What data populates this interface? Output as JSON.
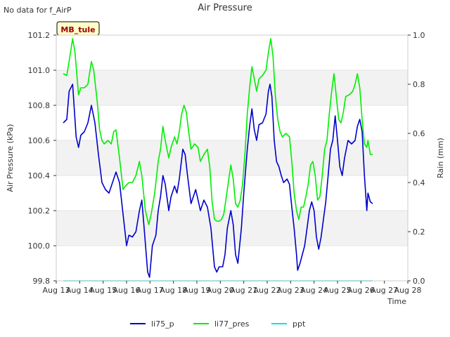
{
  "chart_data": {
    "type": "line",
    "title": "Air Pressure",
    "note": "No data for f_AirP",
    "site_label": "MB_tule",
    "xlabel": "Time",
    "ylabel": "Air Pressure (kPa)",
    "y2label": "Rain (mm)",
    "xlim": [
      13,
      28
    ],
    "ylim": [
      99.8,
      101.2
    ],
    "y2lim": [
      0.0,
      1.0
    ],
    "x_ticks": [
      {
        "value": 13,
        "label": "Aug 13"
      },
      {
        "value": 14,
        "label": "Aug 14"
      },
      {
        "value": 15,
        "label": "Aug 15"
      },
      {
        "value": 16,
        "label": "Aug 16"
      },
      {
        "value": 17,
        "label": "Aug 17"
      },
      {
        "value": 18,
        "label": "Aug 18"
      },
      {
        "value": 19,
        "label": "Aug 19"
      },
      {
        "value": 20,
        "label": "Aug 20"
      },
      {
        "value": 21,
        "label": "Aug 21"
      },
      {
        "value": 22,
        "label": "Aug 22"
      },
      {
        "value": 23,
        "label": "Aug 23"
      },
      {
        "value": 24,
        "label": "Aug 24"
      },
      {
        "value": 25,
        "label": "Aug 25"
      },
      {
        "value": 26,
        "label": "Aug 26"
      },
      {
        "value": 27,
        "label": "Aug 27"
      },
      {
        "value": 28,
        "label": "Aug 28"
      }
    ],
    "y_ticks": [
      {
        "value": 99.8,
        "label": "99.8"
      },
      {
        "value": 100.0,
        "label": "100.0"
      },
      {
        "value": 100.2,
        "label": "100.2"
      },
      {
        "value": 100.4,
        "label": "100.4"
      },
      {
        "value": 100.6,
        "label": "100.6"
      },
      {
        "value": 100.8,
        "label": "100.8"
      },
      {
        "value": 101.0,
        "label": "101.0"
      },
      {
        "value": 101.2,
        "label": "101.2"
      }
    ],
    "y2_ticks": [
      {
        "value": 0.0,
        "label": "0.0"
      },
      {
        "value": 0.2,
        "label": "0.2"
      },
      {
        "value": 0.4,
        "label": "0.4"
      },
      {
        "value": 0.6,
        "label": "0.6"
      },
      {
        "value": 0.8,
        "label": "0.8"
      },
      {
        "value": 1.0,
        "label": "1.0"
      }
    ],
    "series": [
      {
        "name": "li75_p",
        "color": "#0000cc",
        "axis": "left",
        "points": [
          [
            13.3,
            100.7
          ],
          [
            13.45,
            100.72
          ],
          [
            13.55,
            100.88
          ],
          [
            13.7,
            100.92
          ],
          [
            13.85,
            100.62
          ],
          [
            13.95,
            100.56
          ],
          [
            14.05,
            100.63
          ],
          [
            14.2,
            100.65
          ],
          [
            14.35,
            100.7
          ],
          [
            14.5,
            100.8
          ],
          [
            14.65,
            100.7
          ],
          [
            14.8,
            100.52
          ],
          [
            14.95,
            100.36
          ],
          [
            15.1,
            100.32
          ],
          [
            15.25,
            100.3
          ],
          [
            15.4,
            100.36
          ],
          [
            15.55,
            100.42
          ],
          [
            15.7,
            100.36
          ],
          [
            15.85,
            100.18
          ],
          [
            16.0,
            100.0
          ],
          [
            16.1,
            100.06
          ],
          [
            16.25,
            100.05
          ],
          [
            16.4,
            100.08
          ],
          [
            16.55,
            100.2
          ],
          [
            16.65,
            100.26
          ],
          [
            16.75,
            100.1
          ],
          [
            16.9,
            99.85
          ],
          [
            16.98,
            99.82
          ],
          [
            17.1,
            100.0
          ],
          [
            17.25,
            100.06
          ],
          [
            17.35,
            100.2
          ],
          [
            17.45,
            100.28
          ],
          [
            17.55,
            100.4
          ],
          [
            17.65,
            100.35
          ],
          [
            17.8,
            100.2
          ],
          [
            17.9,
            100.28
          ],
          [
            18.05,
            100.34
          ],
          [
            18.15,
            100.3
          ],
          [
            18.25,
            100.38
          ],
          [
            18.4,
            100.55
          ],
          [
            18.5,
            100.52
          ],
          [
            18.6,
            100.4
          ],
          [
            18.75,
            100.24
          ],
          [
            18.85,
            100.28
          ],
          [
            18.95,
            100.32
          ],
          [
            19.05,
            100.26
          ],
          [
            19.15,
            100.2
          ],
          [
            19.3,
            100.26
          ],
          [
            19.45,
            100.22
          ],
          [
            19.6,
            100.1
          ],
          [
            19.75,
            99.88
          ],
          [
            19.85,
            99.85
          ],
          [
            19.95,
            99.88
          ],
          [
            20.1,
            99.88
          ],
          [
            20.2,
            99.95
          ],
          [
            20.3,
            100.1
          ],
          [
            20.45,
            100.2
          ],
          [
            20.55,
            100.12
          ],
          [
            20.65,
            99.95
          ],
          [
            20.75,
            99.9
          ],
          [
            20.9,
            100.1
          ],
          [
            21.0,
            100.3
          ],
          [
            21.15,
            100.55
          ],
          [
            21.25,
            100.68
          ],
          [
            21.35,
            100.78
          ],
          [
            21.45,
            100.66
          ],
          [
            21.55,
            100.6
          ],
          [
            21.65,
            100.69
          ],
          [
            21.8,
            100.7
          ],
          [
            21.95,
            100.75
          ],
          [
            22.05,
            100.88
          ],
          [
            22.12,
            100.92
          ],
          [
            22.2,
            100.85
          ],
          [
            22.3,
            100.6
          ],
          [
            22.4,
            100.48
          ],
          [
            22.5,
            100.45
          ],
          [
            22.6,
            100.4
          ],
          [
            22.7,
            100.36
          ],
          [
            22.85,
            100.38
          ],
          [
            22.95,
            100.35
          ],
          [
            23.05,
            100.22
          ],
          [
            23.15,
            100.1
          ],
          [
            23.25,
            99.95
          ],
          [
            23.3,
            99.86
          ],
          [
            23.4,
            99.9
          ],
          [
            23.5,
            99.95
          ],
          [
            23.6,
            100.0
          ],
          [
            23.7,
            100.1
          ],
          [
            23.8,
            100.2
          ],
          [
            23.9,
            100.25
          ],
          [
            24.0,
            100.2
          ],
          [
            24.1,
            100.05
          ],
          [
            24.2,
            99.98
          ],
          [
            24.3,
            100.05
          ],
          [
            24.4,
            100.15
          ],
          [
            24.5,
            100.25
          ],
          [
            24.6,
            100.4
          ],
          [
            24.7,
            100.55
          ],
          [
            24.8,
            100.6
          ],
          [
            24.9,
            100.74
          ],
          [
            25.0,
            100.6
          ],
          [
            25.1,
            100.45
          ],
          [
            25.2,
            100.4
          ],
          [
            25.3,
            100.5
          ],
          [
            25.45,
            100.6
          ],
          [
            25.6,
            100.58
          ],
          [
            25.75,
            100.6
          ],
          [
            25.85,
            100.68
          ],
          [
            25.95,
            100.72
          ],
          [
            26.05,
            100.65
          ],
          [
            26.15,
            100.4
          ],
          [
            26.25,
            100.2
          ],
          [
            26.3,
            100.3
          ],
          [
            26.4,
            100.25
          ],
          [
            26.5,
            100.24
          ]
        ]
      },
      {
        "name": "li77_pres",
        "color": "#00ee00",
        "axis": "left",
        "points": [
          [
            13.3,
            100.98
          ],
          [
            13.45,
            100.97
          ],
          [
            13.55,
            101.05
          ],
          [
            13.7,
            101.18
          ],
          [
            13.8,
            101.1
          ],
          [
            13.95,
            100.86
          ],
          [
            14.05,
            100.9
          ],
          [
            14.2,
            100.9
          ],
          [
            14.35,
            100.92
          ],
          [
            14.5,
            101.05
          ],
          [
            14.6,
            101.0
          ],
          [
            14.75,
            100.82
          ],
          [
            14.85,
            100.66
          ],
          [
            14.95,
            100.6
          ],
          [
            15.05,
            100.58
          ],
          [
            15.2,
            100.6
          ],
          [
            15.35,
            100.58
          ],
          [
            15.45,
            100.65
          ],
          [
            15.55,
            100.66
          ],
          [
            15.7,
            100.5
          ],
          [
            15.85,
            100.32
          ],
          [
            15.95,
            100.34
          ],
          [
            16.1,
            100.36
          ],
          [
            16.25,
            100.36
          ],
          [
            16.4,
            100.4
          ],
          [
            16.55,
            100.48
          ],
          [
            16.65,
            100.4
          ],
          [
            16.8,
            100.2
          ],
          [
            16.95,
            100.12
          ],
          [
            17.05,
            100.18
          ],
          [
            17.2,
            100.3
          ],
          [
            17.35,
            100.48
          ],
          [
            17.45,
            100.55
          ],
          [
            17.55,
            100.68
          ],
          [
            17.65,
            100.6
          ],
          [
            17.8,
            100.5
          ],
          [
            17.9,
            100.56
          ],
          [
            18.05,
            100.62
          ],
          [
            18.15,
            100.58
          ],
          [
            18.25,
            100.65
          ],
          [
            18.35,
            100.75
          ],
          [
            18.45,
            100.8
          ],
          [
            18.55,
            100.76
          ],
          [
            18.65,
            100.65
          ],
          [
            18.75,
            100.55
          ],
          [
            18.9,
            100.58
          ],
          [
            19.05,
            100.56
          ],
          [
            19.15,
            100.48
          ],
          [
            19.3,
            100.52
          ],
          [
            19.45,
            100.55
          ],
          [
            19.55,
            100.45
          ],
          [
            19.65,
            100.25
          ],
          [
            19.75,
            100.15
          ],
          [
            19.85,
            100.14
          ],
          [
            19.95,
            100.14
          ],
          [
            20.05,
            100.15
          ],
          [
            20.15,
            100.18
          ],
          [
            20.3,
            100.32
          ],
          [
            20.45,
            100.46
          ],
          [
            20.55,
            100.38
          ],
          [
            20.65,
            100.24
          ],
          [
            20.75,
            100.22
          ],
          [
            20.85,
            100.26
          ],
          [
            20.95,
            100.35
          ],
          [
            21.05,
            100.52
          ],
          [
            21.15,
            100.75
          ],
          [
            21.25,
            100.9
          ],
          [
            21.35,
            101.02
          ],
          [
            21.45,
            100.95
          ],
          [
            21.55,
            100.88
          ],
          [
            21.65,
            100.95
          ],
          [
            21.8,
            100.97
          ],
          [
            21.95,
            101.0
          ],
          [
            22.05,
            101.1
          ],
          [
            22.15,
            101.18
          ],
          [
            22.25,
            101.08
          ],
          [
            22.35,
            100.85
          ],
          [
            22.45,
            100.72
          ],
          [
            22.55,
            100.65
          ],
          [
            22.65,
            100.62
          ],
          [
            22.8,
            100.64
          ],
          [
            22.95,
            100.62
          ],
          [
            23.05,
            100.48
          ],
          [
            23.15,
            100.3
          ],
          [
            23.25,
            100.2
          ],
          [
            23.35,
            100.15
          ],
          [
            23.45,
            100.22
          ],
          [
            23.55,
            100.22
          ],
          [
            23.65,
            100.28
          ],
          [
            23.75,
            100.35
          ],
          [
            23.85,
            100.46
          ],
          [
            23.95,
            100.48
          ],
          [
            24.05,
            100.4
          ],
          [
            24.15,
            100.26
          ],
          [
            24.25,
            100.28
          ],
          [
            24.35,
            100.4
          ],
          [
            24.45,
            100.55
          ],
          [
            24.55,
            100.6
          ],
          [
            24.65,
            100.75
          ],
          [
            24.75,
            100.88
          ],
          [
            24.85,
            100.98
          ],
          [
            24.95,
            100.85
          ],
          [
            25.05,
            100.72
          ],
          [
            25.15,
            100.7
          ],
          [
            25.25,
            100.76
          ],
          [
            25.35,
            100.85
          ],
          [
            25.5,
            100.86
          ],
          [
            25.65,
            100.88
          ],
          [
            25.75,
            100.92
          ],
          [
            25.85,
            100.98
          ],
          [
            25.95,
            100.9
          ],
          [
            26.05,
            100.72
          ],
          [
            26.15,
            100.58
          ],
          [
            26.25,
            100.56
          ],
          [
            26.3,
            100.6
          ],
          [
            26.4,
            100.52
          ],
          [
            26.5,
            100.52
          ]
        ]
      },
      {
        "name": "ppt",
        "color": "#00e5e5",
        "axis": "right",
        "points": [
          [
            13.3,
            0.0
          ],
          [
            26.5,
            0.0
          ]
        ]
      }
    ],
    "grid": "horizontal bands",
    "legend": "bottom-center"
  }
}
